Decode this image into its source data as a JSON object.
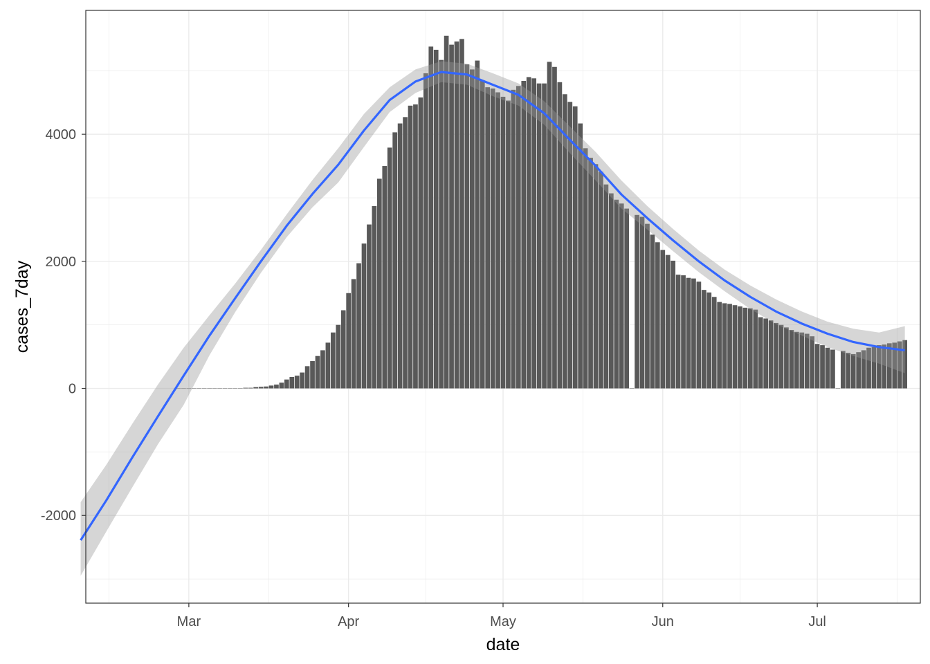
{
  "chart_data": {
    "type": "bar",
    "title": "",
    "xlabel": "date",
    "ylabel": "cases_7day",
    "x_ticks": [
      {
        "date": "2020-03-01",
        "label": "Mar"
      },
      {
        "date": "2020-04-01",
        "label": "Apr"
      },
      {
        "date": "2020-05-01",
        "label": "May"
      },
      {
        "date": "2020-06-01",
        "label": "Jun"
      },
      {
        "date": "2020-07-01",
        "label": "Jul"
      }
    ],
    "y_ticks": [
      -2000,
      0,
      2000,
      4000
    ],
    "xlim": [
      "2020-02-10",
      "2020-07-21"
    ],
    "ylim": [
      -3380,
      5950
    ],
    "grid": true,
    "bars": {
      "start_date": "2020-02-28",
      "end_date": "2020-07-19",
      "values": [
        0,
        0,
        0,
        0,
        0,
        0,
        0,
        0,
        0,
        0,
        0,
        0,
        0,
        10,
        10,
        20,
        25,
        30,
        45,
        60,
        90,
        140,
        180,
        200,
        250,
        350,
        430,
        510,
        600,
        720,
        880,
        1000,
        1230,
        1500,
        1720,
        1970,
        2280,
        2580,
        2870,
        3300,
        3500,
        3790,
        4030,
        4170,
        4270,
        4450,
        4470,
        4580,
        4960,
        5380,
        5330,
        5170,
        5550,
        5410,
        5460,
        5500,
        5100,
        5020,
        5160,
        4850,
        4740,
        4720,
        4660,
        4590,
        4530,
        4700,
        4760,
        4840,
        4900,
        4880,
        4800,
        4800,
        5140,
        5060,
        4820,
        4630,
        4510,
        4440,
        4170,
        3780,
        3630,
        3530,
        3410,
        3210,
        3070,
        2970,
        2910,
        2830,
        0,
        2730,
        2700,
        2590,
        2420,
        2300,
        2180,
        2100,
        2010,
        1790,
        1780,
        1740,
        1730,
        1680,
        1550,
        1510,
        1440,
        1360,
        1340,
        1330,
        1310,
        1290,
        1270,
        1260,
        1240,
        1120,
        1100,
        1070,
        1030,
        1000,
        960,
        920,
        890,
        880,
        860,
        820,
        700,
        680,
        640,
        610,
        0,
        590,
        560,
        540,
        570,
        600,
        640,
        650,
        680,
        690,
        710,
        720,
        740,
        760
      ]
    },
    "smooth": {
      "dates": [
        "2020-02-09",
        "2020-02-14",
        "2020-02-19",
        "2020-02-24",
        "2020-02-29",
        "2020-03-05",
        "2020-03-10",
        "2020-03-15",
        "2020-03-20",
        "2020-03-25",
        "2020-03-30",
        "2020-04-04",
        "2020-04-09",
        "2020-04-14",
        "2020-04-19",
        "2020-04-24",
        "2020-04-29",
        "2020-05-04",
        "2020-05-09",
        "2020-05-14",
        "2020-05-19",
        "2020-05-24",
        "2020-05-29",
        "2020-06-03",
        "2020-06-08",
        "2020-06-13",
        "2020-06-18",
        "2020-06-23",
        "2020-06-28",
        "2020-07-03",
        "2020-07-08",
        "2020-07-13",
        "2020-07-18"
      ],
      "y": [
        -2390,
        -1760,
        -1090,
        -440,
        200,
        830,
        1420,
        2000,
        2560,
        3060,
        3520,
        4060,
        4540,
        4830,
        4980,
        4940,
        4780,
        4620,
        4330,
        3910,
        3500,
        3050,
        2680,
        2330,
        2000,
        1700,
        1440,
        1210,
        1020,
        860,
        730,
        650,
        600
      ],
      "lower": [
        -2950,
        -2250,
        -1560,
        -880,
        -260,
        520,
        1200,
        1820,
        2380,
        2850,
        3240,
        3800,
        4350,
        4650,
        4820,
        4780,
        4600,
        4450,
        4150,
        3700,
        3270,
        2830,
        2500,
        2160,
        1830,
        1530,
        1250,
        1010,
        830,
        650,
        510,
        390,
        240
      ],
      "upper": [
        -1790,
        -1200,
        -560,
        60,
        640,
        1150,
        1650,
        2180,
        2740,
        3280,
        3780,
        4320,
        4740,
        5020,
        5150,
        5110,
        4960,
        4800,
        4520,
        4120,
        3720,
        3270,
        2870,
        2510,
        2170,
        1870,
        1620,
        1400,
        1210,
        1050,
        940,
        880,
        980
      ],
      "color": "#3366ff",
      "band_color": "#999999"
    },
    "bar_color": "#595959",
    "gridline_color": "#ebebeb",
    "axis_text_color": "#4d4d4d",
    "panel_border_color": "#333333"
  }
}
